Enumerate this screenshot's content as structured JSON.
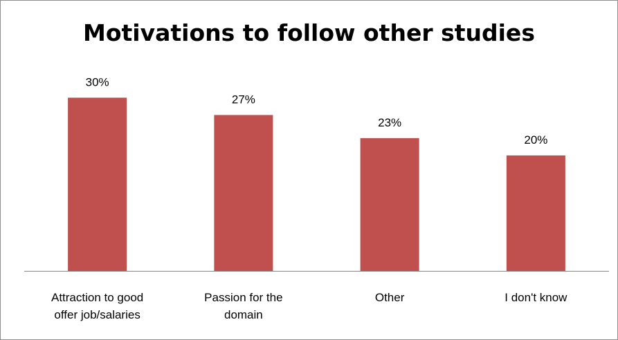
{
  "chart_data": {
    "type": "bar",
    "title": "Motivations to follow other studies",
    "categories": [
      [
        "Attraction to good",
        "offer job/salaries"
      ],
      [
        "Passion for the",
        "domain"
      ],
      [
        "Other"
      ],
      [
        "I don't know"
      ]
    ],
    "values": [
      30,
      27,
      23,
      20
    ],
    "data_labels": [
      "30%",
      "27%",
      "23%",
      "20%"
    ],
    "unit": "%",
    "xlabel": "",
    "ylabel": "",
    "ylim": [
      0,
      31
    ],
    "grid": false,
    "legend": "none",
    "bar_color": "#c0504d",
    "axis_color": "#868686"
  }
}
